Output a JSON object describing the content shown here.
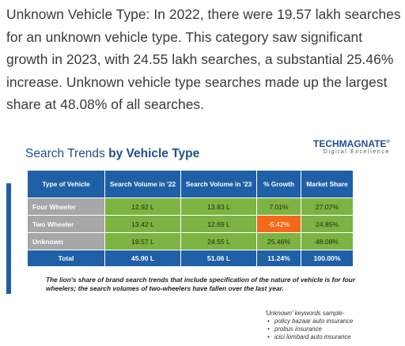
{
  "paragraph": "Unknown Vehicle Type: In 2022, there were 19.57 lakh searches for an unknown vehicle type. This category saw significant growth in 2023, with 24.55 lakh searches, a substantial 25.46% increase. Unknown vehicle type searches made up the largest share at 48.08% of all searches.",
  "infographic": {
    "title_prefix": "Search Trends ",
    "title_bold": "by Vehicle Type",
    "logo_main": "TECHMAGNATE",
    "logo_reg": "®",
    "logo_sub": "Digital Excellence",
    "colors": {
      "header": "#1f5fa6",
      "label": "#a7a7a7",
      "value": "#7cb342",
      "negative": "#f26a1b"
    },
    "table": {
      "headers": [
        "Type of Vehicle",
        "Search Volume in '22",
        "Search Volume in '23",
        "% Growth",
        "Market Share"
      ],
      "rows": [
        {
          "label": "Four Wheeler",
          "v22": "12.92 L",
          "v23": "13.83 L",
          "growth": "7.01%",
          "share": "27.07%"
        },
        {
          "label": "Two Wheeler",
          "v22": "13.42 L",
          "v23": "12.69 L",
          "growth": "-5.42%",
          "share": "24.85%"
        },
        {
          "label": "Unknown",
          "v22": "19.57 L",
          "v23": "24.55 L",
          "growth": "25.46%",
          "share": "48.08%"
        }
      ],
      "total": {
        "label": "Total",
        "v22": "45.90 L",
        "v23": "51.06 L",
        "growth": "11.24%",
        "share": "100.00%"
      }
    },
    "note": "The lion's share of brand search trends that include specification of the nature of vehicle is for four wheelers; the search volumes of two-wheelers have fallen over the last year.",
    "keywords_title": "'Unknown' keywords sample-",
    "keywords": [
      "policy bazaar auto insurance",
      "probus insurance",
      "icici lombard auto insurance"
    ]
  }
}
